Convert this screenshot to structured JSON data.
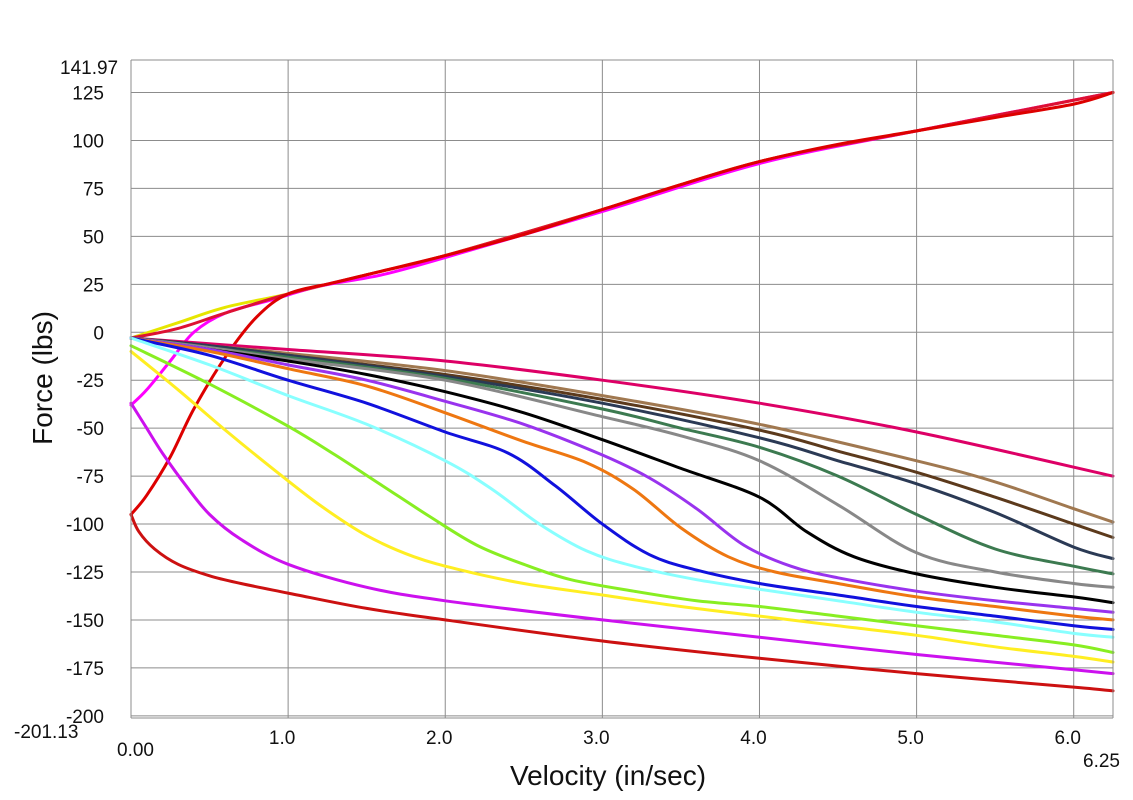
{
  "chart_data": {
    "type": "line",
    "xlabel": "Velocity (in/sec)",
    "ylabel": "Force (lbs)",
    "xlim": [
      0,
      6.25
    ],
    "ylim": [
      -201.13,
      141.97
    ],
    "x_min_label": "0.00",
    "x_max_label": "6.25",
    "y_min_label": "-201.13",
    "y_max_label": "141.97",
    "x_ticks": [
      {
        "value": 1,
        "label": "1.0"
      },
      {
        "value": 2,
        "label": "2.0"
      },
      {
        "value": 3,
        "label": "3.0"
      },
      {
        "value": 4,
        "label": "4.0"
      },
      {
        "value": 5,
        "label": "5.0"
      },
      {
        "value": 6,
        "label": "6.0"
      }
    ],
    "y_ticks": [
      {
        "value": 125,
        "label": "125"
      },
      {
        "value": 100,
        "label": "100"
      },
      {
        "value": 75,
        "label": "75"
      },
      {
        "value": 50,
        "label": "50"
      },
      {
        "value": 25,
        "label": "25"
      },
      {
        "value": 0,
        "label": "0"
      },
      {
        "value": -25,
        "label": "-25"
      },
      {
        "value": -50,
        "label": "-50"
      },
      {
        "value": -75,
        "label": "-75"
      },
      {
        "value": -100,
        "label": "-100"
      },
      {
        "value": -125,
        "label": "-125"
      },
      {
        "value": -150,
        "label": "-150"
      },
      {
        "value": -175,
        "label": "-175"
      },
      {
        "value": -200,
        "label": "-200"
      }
    ],
    "grid": true,
    "series": [
      {
        "color": "#e6e600",
        "x": [
          0.0,
          0.3,
          0.6,
          1.0,
          1.5,
          2.0,
          3.0,
          4.0,
          5.0,
          6.25
        ],
        "y": [
          -3,
          5,
          13,
          20,
          30,
          40,
          64,
          89,
          105,
          125
        ]
      },
      {
        "color": "#ff00ff",
        "x": [
          0.0,
          0.1,
          0.25,
          0.4,
          0.6,
          0.9,
          1.2,
          1.6,
          2.0,
          3.0,
          4.0,
          5.0,
          6.25
        ],
        "y": [
          -38,
          -30,
          -15,
          0,
          10,
          17,
          24,
          30,
          39,
          63,
          88,
          105,
          125
        ]
      },
      {
        "color": "#dd1133",
        "x": [
          0.0,
          0.3,
          0.6,
          1.0,
          1.5,
          2.0,
          3.0,
          4.0,
          5.0,
          6.25
        ],
        "y": [
          -3,
          2,
          10,
          20,
          30,
          40,
          64,
          89,
          105,
          125
        ]
      },
      {
        "color": "#dd0000",
        "x": [
          0.0,
          0.1,
          0.25,
          0.4,
          0.6,
          0.8,
          1.0,
          1.3,
          1.6,
          2.0,
          2.5,
          3.0,
          3.5,
          4.0,
          4.5,
          5.0,
          5.5,
          6.0,
          6.25
        ],
        "y": [
          -95,
          -85,
          -65,
          -40,
          -13,
          8,
          20,
          26,
          32,
          40,
          51,
          64,
          77,
          89,
          98,
          105,
          112,
          119,
          125
        ]
      },
      {
        "color": "#dd0066",
        "x": [
          0.0,
          0.5,
          1.0,
          2.0,
          3.0,
          4.0,
          5.0,
          6.25
        ],
        "y": [
          -3,
          -6,
          -9,
          -15,
          -25,
          -37,
          -52,
          -75
        ]
      },
      {
        "color": "#a07850",
        "x": [
          0.0,
          0.5,
          1.0,
          2.0,
          3.0,
          4.0,
          5.0,
          5.5,
          6.0,
          6.25
        ],
        "y": [
          -3,
          -7,
          -11,
          -20,
          -33,
          -48,
          -67,
          -78,
          -92,
          -99
        ]
      },
      {
        "color": "#5c3a1c",
        "x": [
          0.0,
          0.5,
          1.0,
          2.0,
          3.0,
          4.0,
          4.5,
          5.0,
          5.5,
          6.0,
          6.25
        ],
        "y": [
          -3,
          -7,
          -12,
          -22,
          -35,
          -51,
          -62,
          -73,
          -86,
          -100,
          -107
        ]
      },
      {
        "color": "#2b3a55",
        "x": [
          0.0,
          0.5,
          1.0,
          2.0,
          3.0,
          4.0,
          4.5,
          5.0,
          5.5,
          6.0,
          6.25
        ],
        "y": [
          -3,
          -7,
          -12,
          -23,
          -37,
          -55,
          -67,
          -79,
          -94,
          -112,
          -118
        ]
      },
      {
        "color": "#3c7a50",
        "x": [
          0.0,
          0.5,
          1.0,
          2.0,
          3.0,
          3.5,
          4.0,
          4.5,
          5.0,
          5.5,
          6.0,
          6.25
        ],
        "y": [
          -3,
          -8,
          -13,
          -24,
          -40,
          -50,
          -60,
          -75,
          -95,
          -113,
          -122,
          -126
        ]
      },
      {
        "color": "#888888",
        "x": [
          0.0,
          0.5,
          1.0,
          2.0,
          3.0,
          3.5,
          4.0,
          4.5,
          5.0,
          5.5,
          6.0,
          6.25
        ],
        "y": [
          -3,
          -8,
          -14,
          -25,
          -44,
          -54,
          -67,
          -90,
          -115,
          -125,
          -131,
          -133
        ]
      },
      {
        "color": "#000000",
        "x": [
          0.0,
          0.5,
          1.0,
          1.5,
          2.0,
          2.5,
          3.0,
          3.5,
          4.0,
          4.3,
          4.6,
          5.0,
          5.5,
          6.0,
          6.25
        ],
        "y": [
          -3,
          -9,
          -15,
          -22,
          -31,
          -42,
          -56,
          -71,
          -86,
          -104,
          -117,
          -126,
          -133,
          -138,
          -141
        ]
      },
      {
        "color": "#9933ee",
        "x": [
          0.0,
          0.5,
          1.0,
          1.5,
          2.0,
          2.5,
          3.0,
          3.3,
          3.6,
          3.9,
          4.2,
          4.5,
          5.0,
          5.5,
          6.0,
          6.25
        ],
        "y": [
          -3,
          -9,
          -17,
          -25,
          -36,
          -48,
          -64,
          -76,
          -92,
          -111,
          -122,
          -128,
          -135,
          -140,
          -144,
          -146
        ]
      },
      {
        "color": "#ee7711",
        "x": [
          0.0,
          0.5,
          1.0,
          1.5,
          2.0,
          2.5,
          2.9,
          3.2,
          3.5,
          3.8,
          4.1,
          4.5,
          5.0,
          5.5,
          6.0,
          6.25
        ],
        "y": [
          -3,
          -10,
          -19,
          -28,
          -42,
          -57,
          -68,
          -82,
          -102,
          -117,
          -125,
          -131,
          -138,
          -143,
          -148,
          -150
        ]
      },
      {
        "color": "#1111dd",
        "x": [
          0.0,
          0.5,
          1.0,
          1.5,
          2.0,
          2.4,
          2.7,
          3.0,
          3.3,
          3.6,
          4.0,
          4.5,
          5.0,
          5.5,
          6.0,
          6.25
        ],
        "y": [
          -3,
          -12,
          -25,
          -37,
          -52,
          -63,
          -80,
          -100,
          -116,
          -124,
          -131,
          -137,
          -143,
          -148,
          -153,
          -155
        ]
      },
      {
        "color": "#88ffff",
        "x": [
          0.0,
          0.5,
          1.0,
          1.5,
          2.0,
          2.3,
          2.6,
          2.9,
          3.2,
          3.6,
          4.0,
          4.5,
          5.0,
          5.5,
          6.0,
          6.25
        ],
        "y": [
          -3,
          -17,
          -33,
          -48,
          -67,
          -82,
          -100,
          -114,
          -122,
          -129,
          -134,
          -140,
          -146,
          -151,
          -157,
          -159
        ]
      },
      {
        "color": "#88ee22",
        "x": [
          0.0,
          0.5,
          1.0,
          1.3,
          1.6,
          1.9,
          2.2,
          2.5,
          2.8,
          3.2,
          3.6,
          4.0,
          4.5,
          5.0,
          5.5,
          6.0,
          6.25
        ],
        "y": [
          -7,
          -27,
          -49,
          -64,
          -80,
          -96,
          -111,
          -121,
          -129,
          -135,
          -140,
          -143,
          -148,
          -153,
          -158,
          -163,
          -167
        ]
      },
      {
        "color": "#ffee22",
        "x": [
          0.0,
          0.3,
          0.6,
          0.9,
          1.2,
          1.5,
          1.8,
          2.1,
          2.5,
          3.0,
          3.5,
          4.0,
          4.5,
          5.0,
          5.5,
          6.0,
          6.25
        ],
        "y": [
          -10,
          -30,
          -51,
          -71,
          -90,
          -106,
          -117,
          -124,
          -131,
          -137,
          -143,
          -148,
          -153,
          -158,
          -164,
          -169,
          -172
        ]
      },
      {
        "color": "#cc11ee",
        "x": [
          0.0,
          0.1,
          0.2,
          0.35,
          0.5,
          0.7,
          1.0,
          1.5,
          2.0,
          3.0,
          4.0,
          5.0,
          6.0,
          6.25
        ],
        "y": [
          -37,
          -50,
          -63,
          -80,
          -95,
          -108,
          -121,
          -133,
          -140,
          -150,
          -159,
          -168,
          -176,
          -178
        ]
      },
      {
        "color": "#cc1111",
        "x": [
          0.0,
          0.05,
          0.15,
          0.3,
          0.5,
          0.7,
          1.0,
          1.5,
          2.0,
          3.0,
          4.0,
          5.0,
          6.0,
          6.25
        ],
        "y": [
          -95,
          -104,
          -113,
          -121,
          -127,
          -131,
          -136,
          -144,
          -150,
          -161,
          -170,
          -178,
          -185,
          -187
        ]
      }
    ]
  }
}
